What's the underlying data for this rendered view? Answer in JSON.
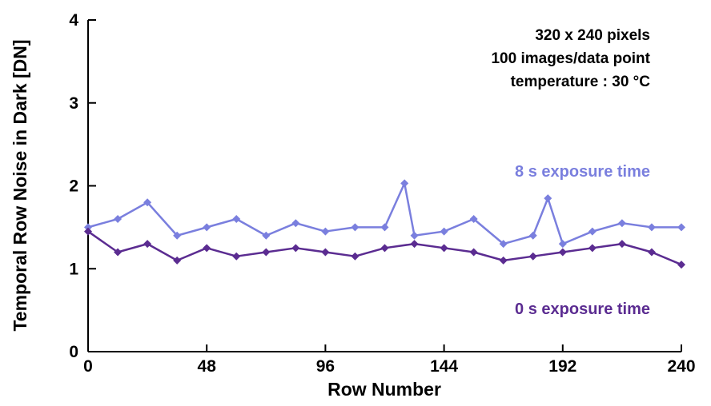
{
  "chart_data": {
    "type": "line",
    "title": "",
    "xlabel": "Row Number",
    "ylabel": "Temporal Row Noise in Dark [DN]",
    "xlim": [
      0,
      240
    ],
    "ylim": [
      0,
      4
    ],
    "x_ticks": [
      "0",
      "48",
      "96",
      "144",
      "192",
      "240"
    ],
    "y_ticks": [
      "0",
      "1",
      "2",
      "3",
      "4"
    ],
    "annotations": [
      "320 x 240 pixels",
      "100 images/data point",
      "temperature : 30 °C"
    ],
    "marker": "diamond",
    "grid": false,
    "series": [
      {
        "name": "8 s exposure time",
        "color": "#7a7fde",
        "x": [
          0,
          12,
          24,
          36,
          48,
          60,
          72,
          84,
          96,
          108,
          120,
          128,
          132,
          144,
          156,
          168,
          180,
          186,
          192,
          204,
          216,
          228,
          240
        ],
        "values": [
          1.5,
          1.6,
          1.8,
          1.4,
          1.5,
          1.6,
          1.4,
          1.55,
          1.45,
          1.5,
          1.5,
          2.03,
          1.4,
          1.45,
          1.6,
          1.3,
          1.4,
          1.85,
          1.3,
          1.45,
          1.55,
          1.5,
          1.5
        ]
      },
      {
        "name": "0 s exposure time",
        "color": "#5b2c91",
        "x": [
          0,
          12,
          24,
          36,
          48,
          60,
          72,
          84,
          96,
          108,
          120,
          132,
          144,
          156,
          168,
          180,
          192,
          204,
          216,
          228,
          240
        ],
        "values": [
          1.45,
          1.2,
          1.3,
          1.1,
          1.25,
          1.15,
          1.2,
          1.25,
          1.2,
          1.15,
          1.25,
          1.3,
          1.25,
          1.2,
          1.1,
          1.15,
          1.2,
          1.25,
          1.3,
          1.2,
          1.05
        ]
      }
    ]
  }
}
